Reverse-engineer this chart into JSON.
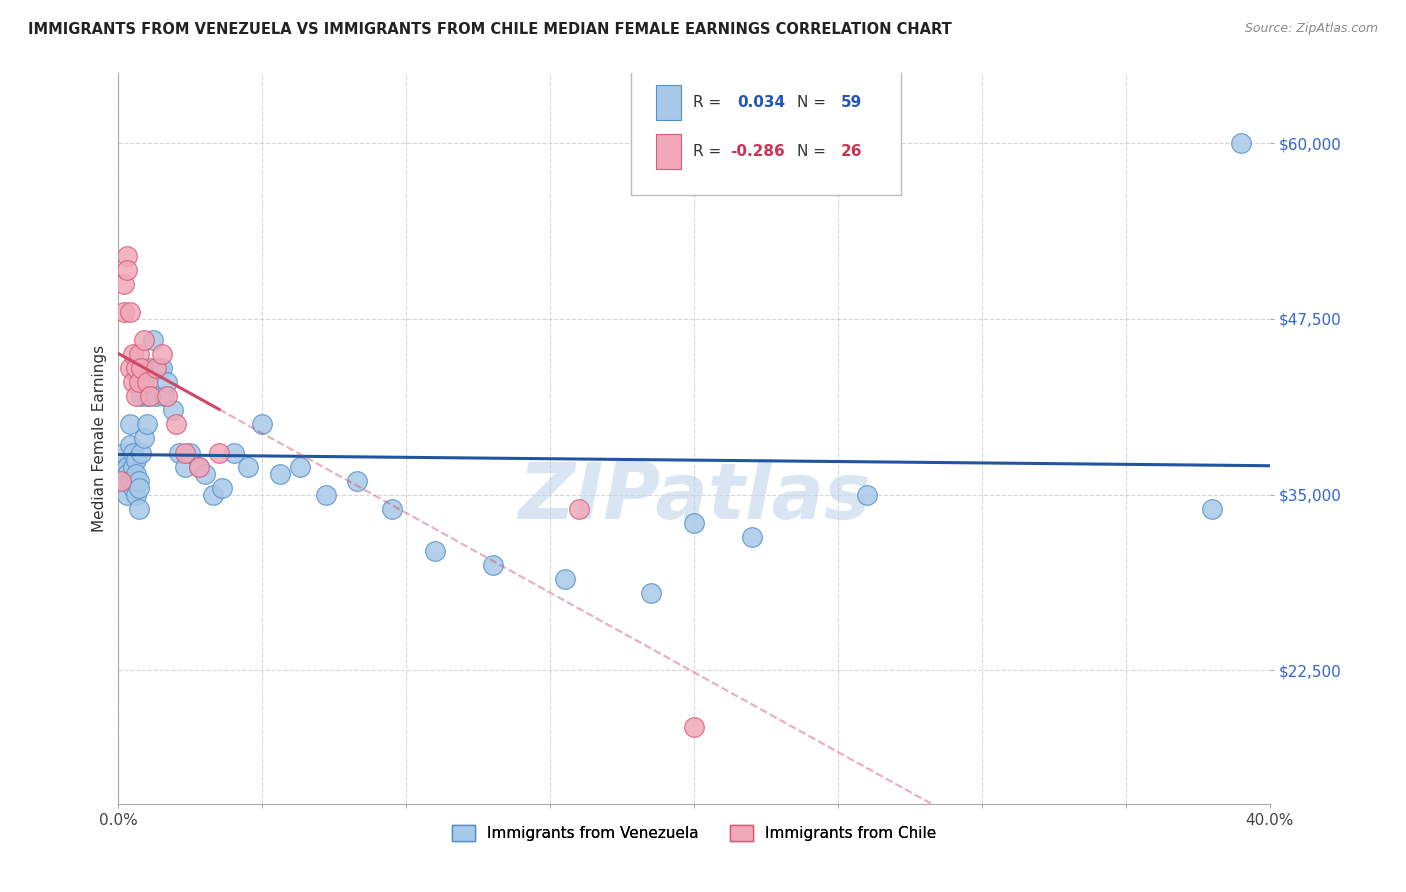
{
  "title": "IMMIGRANTS FROM VENEZUELA VS IMMIGRANTS FROM CHILE MEDIAN FEMALE EARNINGS CORRELATION CHART",
  "source": "Source: ZipAtlas.com",
  "ylabel": "Median Female Earnings",
  "xlim": [
    0.0,
    0.4
  ],
  "ylim": [
    13000,
    65000
  ],
  "yticks": [
    22500,
    35000,
    47500,
    60000
  ],
  "ytick_labels": [
    "$22,500",
    "$35,000",
    "$47,500",
    "$60,000"
  ],
  "xticks": [
    0.0,
    0.05,
    0.1,
    0.15,
    0.2,
    0.25,
    0.3,
    0.35,
    0.4
  ],
  "xtick_labels": [
    "0.0%",
    "",
    "",
    "",
    "",
    "",
    "",
    "",
    "40.0%"
  ],
  "r_venezuela": "0.034",
  "n_venezuela": "59",
  "r_chile": "-0.286",
  "n_chile": "26",
  "color_venezuela_fill": "#a8c8e8",
  "color_venezuela_edge": "#5090c8",
  "color_chile_fill": "#f0a8b8",
  "color_chile_edge": "#d85878",
  "color_line_venezuela": "#2255a0",
  "color_line_chile": "#d04868",
  "background_color": "#ffffff",
  "grid_color": "#cccccc",
  "watermark_color": "#c0d4ec",
  "venezuela_x": [
    0.001,
    0.002,
    0.002,
    0.003,
    0.003,
    0.003,
    0.004,
    0.004,
    0.004,
    0.005,
    0.005,
    0.005,
    0.005,
    0.006,
    0.006,
    0.006,
    0.006,
    0.007,
    0.007,
    0.007,
    0.008,
    0.008,
    0.008,
    0.009,
    0.009,
    0.01,
    0.01,
    0.011,
    0.012,
    0.013,
    0.014,
    0.015,
    0.016,
    0.017,
    0.019,
    0.021,
    0.023,
    0.025,
    0.028,
    0.03,
    0.033,
    0.036,
    0.04,
    0.045,
    0.05,
    0.056,
    0.063,
    0.072,
    0.083,
    0.095,
    0.11,
    0.13,
    0.155,
    0.185,
    0.2,
    0.22,
    0.26,
    0.38,
    0.39
  ],
  "venezuela_y": [
    37000,
    38000,
    36000,
    35000,
    37000,
    36500,
    38500,
    40000,
    36000,
    37000,
    35500,
    36000,
    38000,
    36000,
    37500,
    35000,
    36500,
    34000,
    36000,
    35500,
    44000,
    42000,
    38000,
    43000,
    39000,
    42000,
    40000,
    44000,
    46000,
    42000,
    44000,
    44000,
    42000,
    43000,
    41000,
    38000,
    37000,
    38000,
    37000,
    36500,
    35000,
    35500,
    38000,
    37000,
    40000,
    36500,
    37000,
    35000,
    36000,
    34000,
    31000,
    30000,
    29000,
    28000,
    33000,
    32000,
    35000,
    34000,
    60000
  ],
  "chile_x": [
    0.001,
    0.002,
    0.002,
    0.003,
    0.003,
    0.004,
    0.004,
    0.005,
    0.005,
    0.006,
    0.006,
    0.007,
    0.007,
    0.008,
    0.009,
    0.01,
    0.011,
    0.013,
    0.015,
    0.017,
    0.02,
    0.023,
    0.028,
    0.035,
    0.16,
    0.2
  ],
  "chile_y": [
    36000,
    50000,
    48000,
    52000,
    51000,
    44000,
    48000,
    45000,
    43000,
    44000,
    42000,
    45000,
    43000,
    44000,
    46000,
    43000,
    42000,
    44000,
    45000,
    42000,
    40000,
    38000,
    37000,
    38000,
    34000,
    18500
  ],
  "trend_line_solid_end_chile": 0.035,
  "trend_line_dash_start_chile": 0.035,
  "trend_line_end_chile": 0.4
}
